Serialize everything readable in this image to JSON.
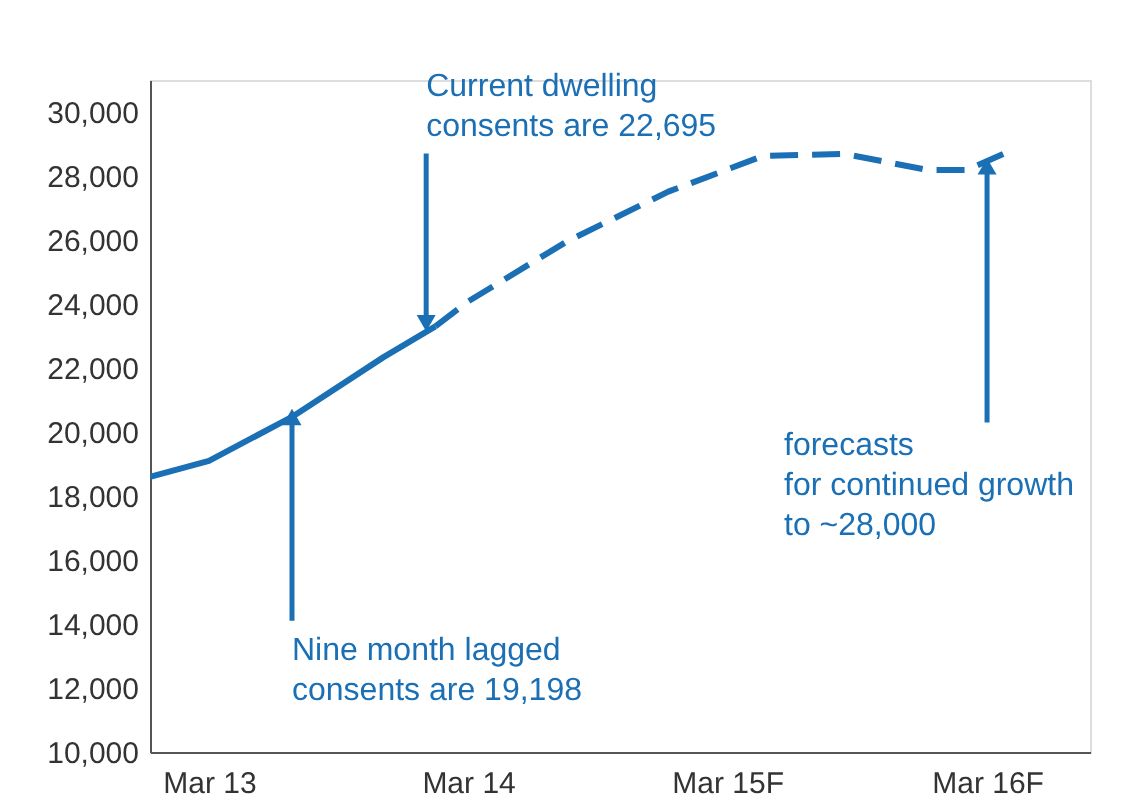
{
  "chart_data": {
    "type": "line",
    "xlim": [
      "2012-12-08",
      "2016-07-24"
    ],
    "ylim": [
      10000,
      31000
    ],
    "xticks": [
      {
        "value": "2013-03-01",
        "label": "Mar 13"
      },
      {
        "value": "2014-03-01",
        "label": "Mar 14"
      },
      {
        "value": "2015-03-01",
        "label": "Mar 15F"
      },
      {
        "value": "2016-03-01",
        "label": "Mar 16F"
      }
    ],
    "yticks": [
      {
        "value": 10000,
        "label": "10,000"
      },
      {
        "value": 12000,
        "label": "12,000"
      },
      {
        "value": 14000,
        "label": "14,000"
      },
      {
        "value": 16000,
        "label": "16,000"
      },
      {
        "value": 18000,
        "label": "18,000"
      },
      {
        "value": 20000,
        "label": "20,000"
      },
      {
        "value": 22000,
        "label": "22,000"
      },
      {
        "value": 24000,
        "label": "24,000"
      },
      {
        "value": 26000,
        "label": "26,000"
      },
      {
        "value": 28000,
        "label": "28,000"
      },
      {
        "value": 30000,
        "label": "30,000"
      }
    ],
    "grid": false,
    "series": [
      {
        "color": "#1a6fb5",
        "line_style": "solid",
        "x": [
          "2012-12-08",
          "2013-03-01",
          "2013-06-26",
          "2013-11-02",
          "2014-01-14"
        ],
        "values": [
          18600,
          19100,
          20470,
          22340,
          23300
        ]
      },
      {
        "color": "#1a6fb5",
        "line_style": "dashed",
        "x": [
          "2014-01-14",
          "2014-03-01",
          "2014-07-18",
          "2014-12-08",
          "2015-04-21",
          "2015-08-13",
          "2015-12-08",
          "2016-02-02",
          "2016-03-30"
        ],
        "values": [
          23300,
          24080,
          25950,
          27510,
          28630,
          28690,
          28190,
          28190,
          28750
        ]
      }
    ],
    "annotations": [
      {
        "text": "Current dwelling\nconsents are 22,695",
        "x": "2014-01-01",
        "y": 23400
      },
      {
        "text": "Nine month lagged\nconsents are 19,198",
        "x": "2013-06-26",
        "y": 20470
      },
      {
        "text": "forecasts\nfor continued growth\nto ~28,000",
        "x": "2016-03-01",
        "y": 28300
      }
    ]
  }
}
